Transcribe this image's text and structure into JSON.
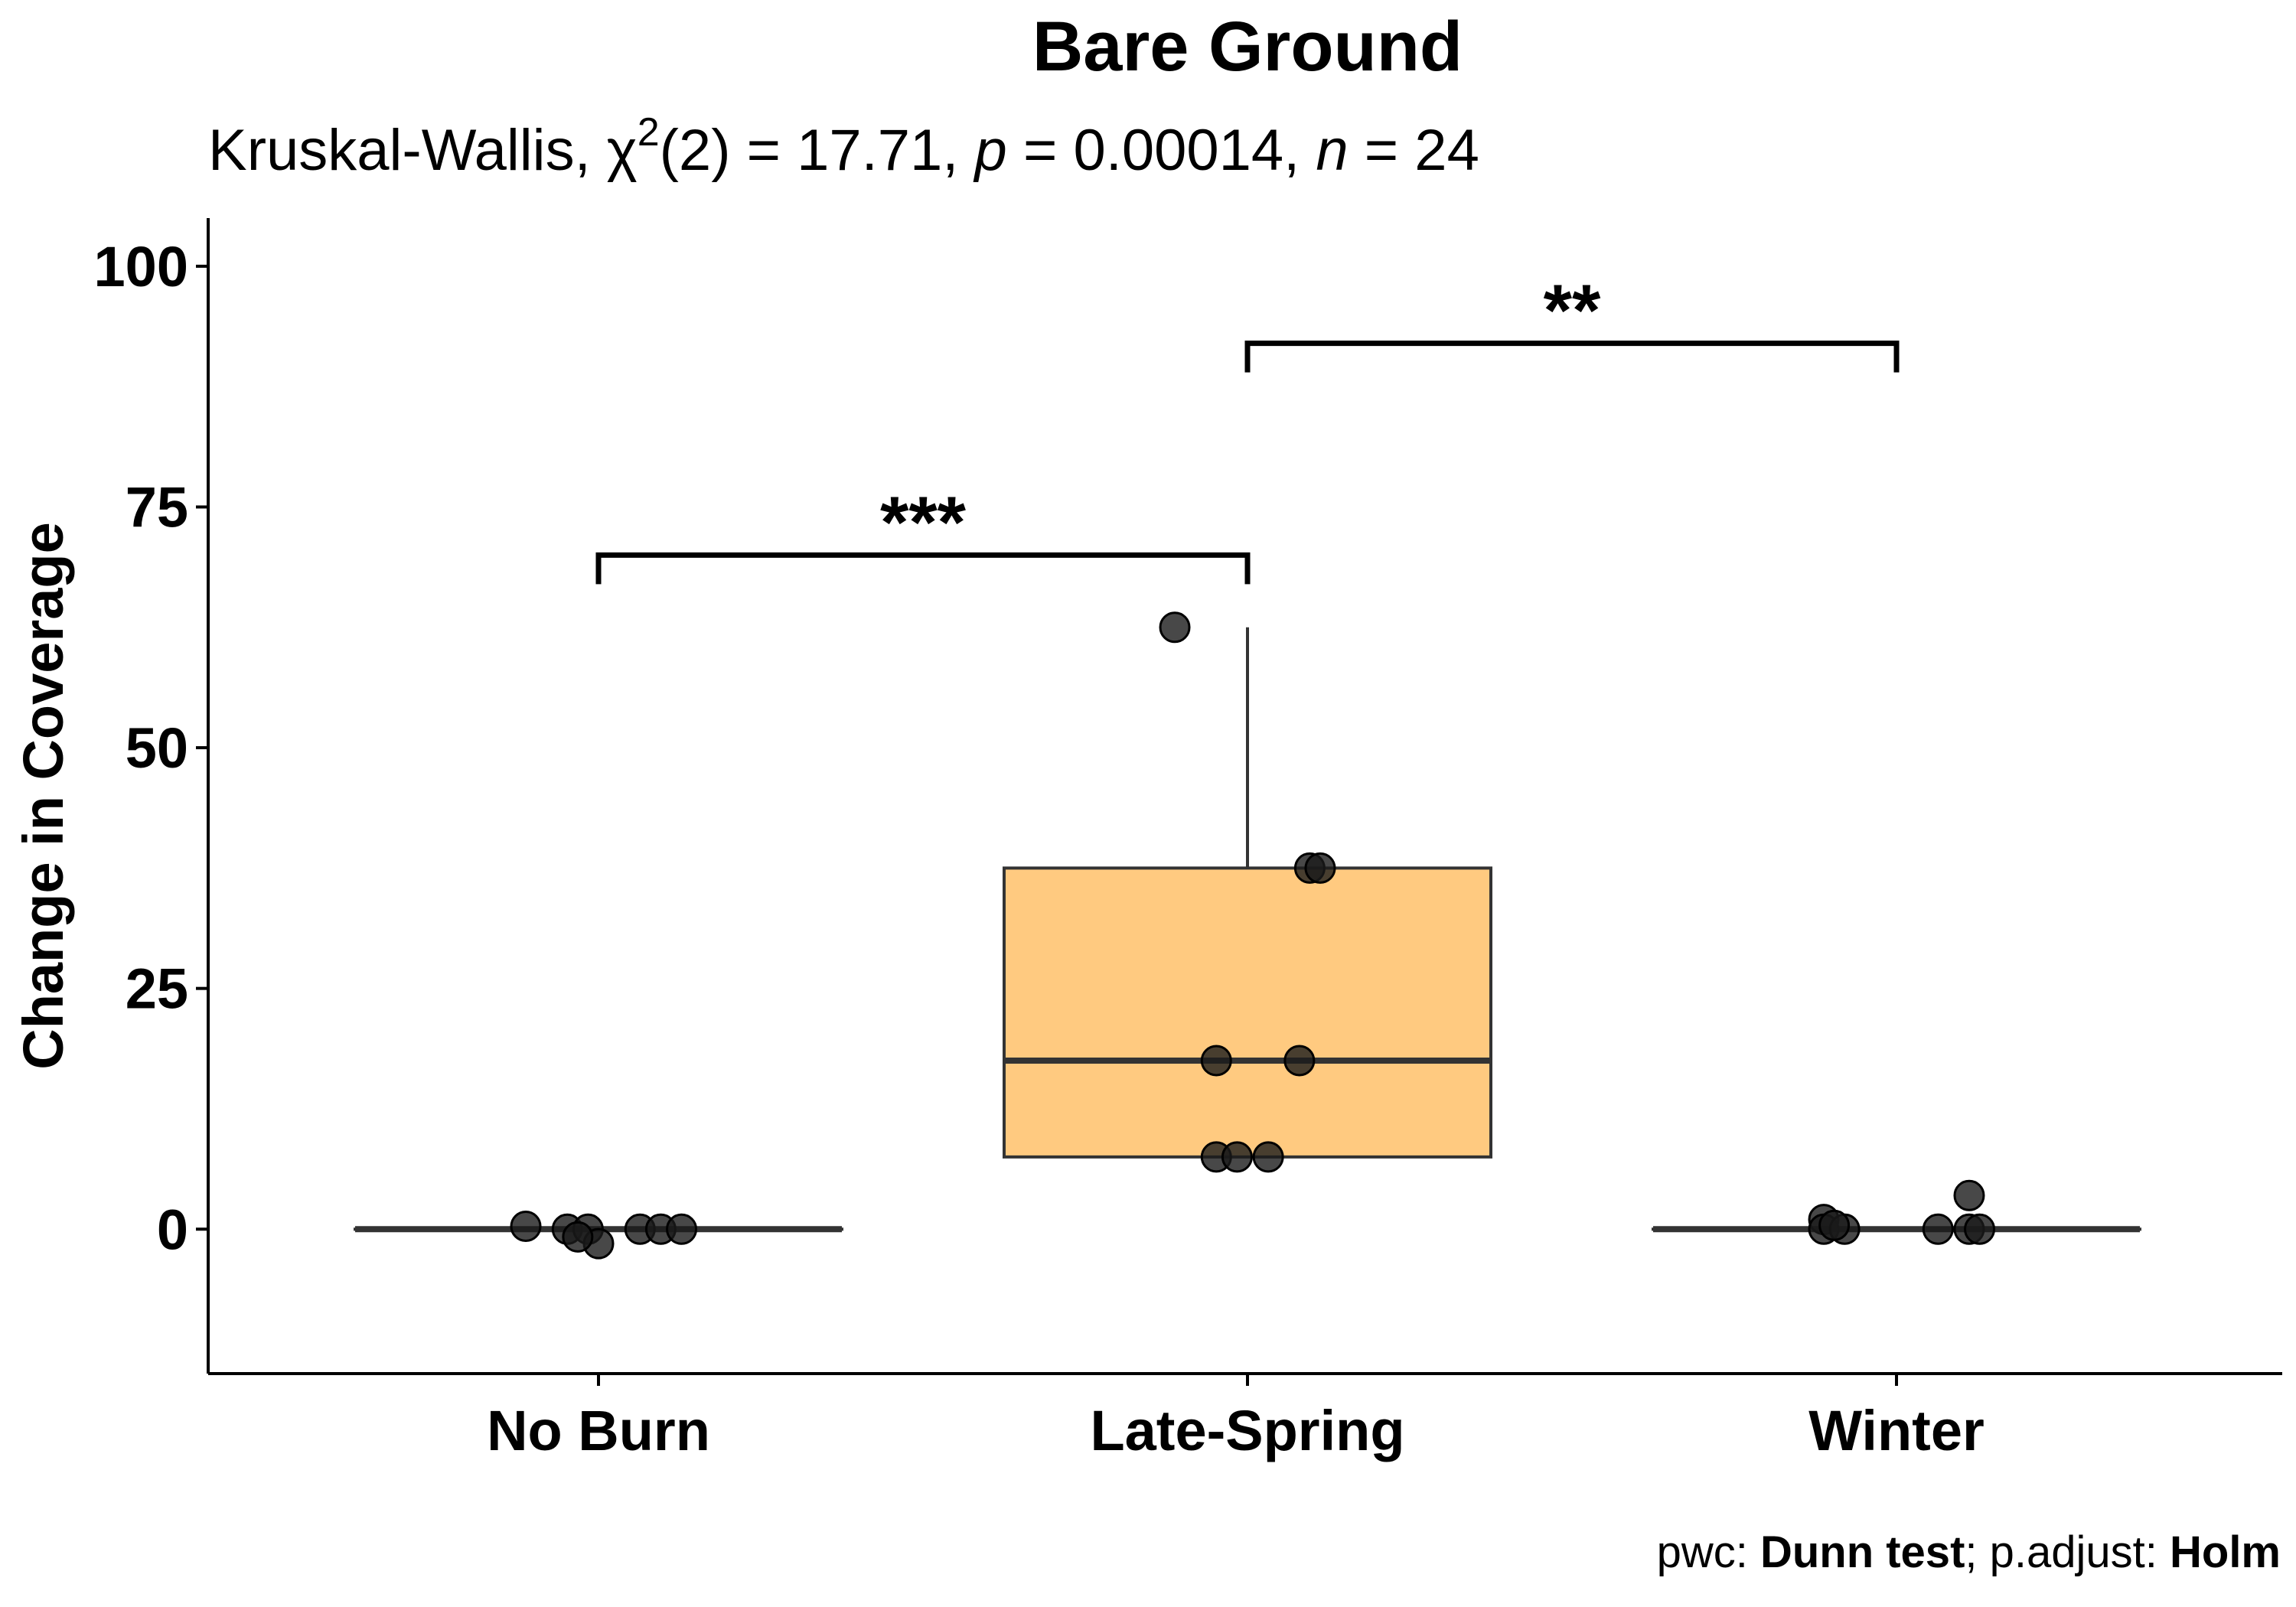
{
  "chart_data": {
    "type": "box",
    "title": "Bare Ground",
    "subtitle": {
      "test": "Kruskal-Wallis, ",
      "chi": "χ",
      "sup": "2",
      "df": "(2) = 17.71, ",
      "p_sym": "p",
      "p_val": " = 0.00014, ",
      "n_sym": "n",
      "n_val": " = 24"
    },
    "xlabel": "",
    "ylabel": "Change in Coverage",
    "ylim": [
      -15,
      105
    ],
    "yticks": [
      0,
      25,
      50,
      75,
      100
    ],
    "categories": [
      "No Burn",
      "Late-Spring",
      "Winter"
    ],
    "boxes": [
      {
        "category": "No Burn",
        "min": 0,
        "q1": 0,
        "median": 0,
        "q3": 0,
        "max": 0,
        "fill": "none"
      },
      {
        "category": "Late-Spring",
        "min": 7.5,
        "q1": 7.5,
        "median": 17.5,
        "q3": 37.5,
        "max": 62.5,
        "fill": "#FFCA80"
      },
      {
        "category": "Winter",
        "min": 0,
        "q1": 0,
        "median": 0,
        "q3": 0,
        "max": 0,
        "fill": "none"
      }
    ],
    "points": [
      {
        "category": "No Burn",
        "offset": -0.07,
        "y": 0.3
      },
      {
        "category": "No Burn",
        "offset": -0.03,
        "y": 0
      },
      {
        "category": "No Burn",
        "offset": -0.01,
        "y": 0
      },
      {
        "category": "No Burn",
        "offset": 0.0,
        "y": -1.5
      },
      {
        "category": "No Burn",
        "offset": 0.04,
        "y": 0
      },
      {
        "category": "No Burn",
        "offset": 0.06,
        "y": 0
      },
      {
        "category": "No Burn",
        "offset": 0.08,
        "y": 0
      },
      {
        "category": "No Burn",
        "offset": -0.02,
        "y": -0.8
      },
      {
        "category": "Late-Spring",
        "offset": -0.07,
        "y": 62.5
      },
      {
        "category": "Late-Spring",
        "offset": 0.06,
        "y": 37.5
      },
      {
        "category": "Late-Spring",
        "offset": 0.07,
        "y": 37.5
      },
      {
        "category": "Late-Spring",
        "offset": -0.03,
        "y": 17.5
      },
      {
        "category": "Late-Spring",
        "offset": 0.05,
        "y": 17.5
      },
      {
        "category": "Late-Spring",
        "offset": -0.03,
        "y": 7.5
      },
      {
        "category": "Late-Spring",
        "offset": -0.01,
        "y": 7.5
      },
      {
        "category": "Late-Spring",
        "offset": 0.02,
        "y": 7.5
      },
      {
        "category": "Winter",
        "offset": -0.07,
        "y": 1.0
      },
      {
        "category": "Winter",
        "offset": -0.07,
        "y": 0
      },
      {
        "category": "Winter",
        "offset": -0.05,
        "y": 0
      },
      {
        "category": "Winter",
        "offset": 0.04,
        "y": 0
      },
      {
        "category": "Winter",
        "offset": 0.07,
        "y": 3.5
      },
      {
        "category": "Winter",
        "offset": 0.07,
        "y": 0
      },
      {
        "category": "Winter",
        "offset": 0.08,
        "y": 0
      },
      {
        "category": "Winter",
        "offset": -0.06,
        "y": 0.4
      }
    ],
    "comparisons": [
      {
        "from": "No Burn",
        "to": "Late-Spring",
        "y": 70,
        "label": "***"
      },
      {
        "from": "Late-Spring",
        "to": "Winter",
        "y": 92,
        "label": "**"
      }
    ],
    "caption": {
      "pwc_label": "pwc: ",
      "pwc_value": "Dunn test",
      "sep": "; p.adjust: ",
      "adjust_value": "Holm"
    },
    "colors": {
      "late_spring_fill": "#FFCA80",
      "line": "#333333",
      "point": "#1a1a1a",
      "axis": "#000000"
    },
    "grid": false
  }
}
